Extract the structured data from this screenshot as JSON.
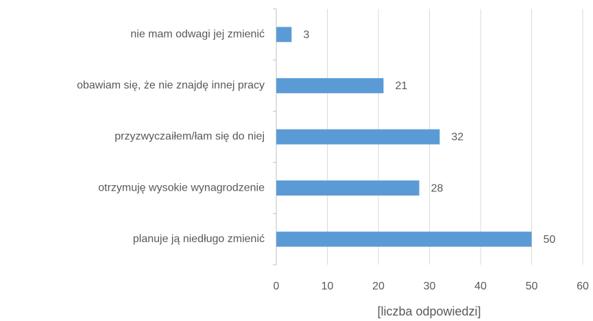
{
  "chart_data": {
    "type": "bar",
    "orientation": "horizontal",
    "categories": [
      "nie mam odwagi jej zmienić",
      "obawiam się, że nie znajdę innej pracy",
      "przyzwyczaiłem/łam się do niej",
      "otrzymuję wysokie wynagrodzenie",
      "planuje ją niedługo zmienić"
    ],
    "values": [
      3,
      21,
      32,
      28,
      50
    ],
    "color": "#5b9bd5",
    "xlabel": "[liczba odpowiedzi]",
    "xlim": [
      0,
      60
    ],
    "xticks": [
      0,
      10,
      20,
      30,
      40,
      50,
      60
    ],
    "grid": true
  }
}
